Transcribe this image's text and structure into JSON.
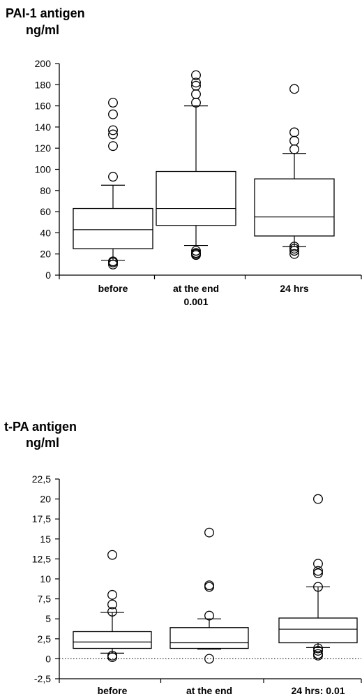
{
  "charts": [
    {
      "title": "PAI-1 antigen",
      "unit": "ng/ml"
    },
    {
      "title": "t-PA antigen",
      "unit": "ng/ml"
    }
  ],
  "chart_data": [
    {
      "type": "box",
      "title": "PAI-1 antigen",
      "ylabel": "ng/ml",
      "ylim": [
        0,
        200
      ],
      "yticks": [
        0,
        20,
        40,
        60,
        80,
        100,
        120,
        140,
        160,
        180,
        200
      ],
      "ytick_labels": [
        "0",
        "20",
        "40",
        "60",
        "80",
        "100",
        "120",
        "140",
        "160",
        "180",
        "200"
      ],
      "categories": [
        "before",
        "at the end",
        "24 hrs"
      ],
      "category_notes": [
        "",
        "0.001",
        ""
      ],
      "grid": false,
      "boxes": [
        {
          "whisker_low": 14,
          "q1": 25,
          "median": 43,
          "q3": 63,
          "whisker_high": 85,
          "outliers": [
            10,
            12,
            13,
            93,
            122,
            133,
            137,
            152,
            163
          ]
        },
        {
          "whisker_low": 28,
          "q1": 47,
          "median": 63,
          "q3": 98,
          "whisker_high": 160,
          "outliers": [
            19,
            20,
            21,
            23,
            163,
            171,
            179,
            182,
            189
          ]
        },
        {
          "whisker_low": 27,
          "q1": 37,
          "median": 55,
          "q3": 91,
          "whisker_high": 115,
          "outliers": [
            20,
            23,
            25,
            27,
            119,
            127,
            135,
            176
          ]
        }
      ]
    },
    {
      "type": "box",
      "title": "t-PA antigen",
      "ylabel": "ng/ml",
      "ylim": [
        -2.5,
        22.5
      ],
      "yticks": [
        -2.5,
        0,
        2.5,
        5,
        7.5,
        10,
        12.5,
        15,
        17.5,
        20,
        22.5
      ],
      "ytick_labels": [
        "-2,5",
        "0",
        "2,5",
        "5",
        "7,5",
        "10",
        "12,5",
        "15",
        "17,5",
        "20",
        "22,5"
      ],
      "categories": [
        "before",
        "at the end",
        "24 hrs: 0.01"
      ],
      "zero_line": "dotted",
      "grid": false,
      "boxes": [
        {
          "whisker_low": 0.7,
          "q1": 1.3,
          "median": 2.1,
          "q3": 3.4,
          "whisker_high": 5.8,
          "outliers": [
            0.2,
            0.4,
            5.9,
            6.8,
            8.0,
            13.0
          ]
        },
        {
          "whisker_low": 1.2,
          "q1": 1.3,
          "median": 2.0,
          "q3": 3.9,
          "whisker_high": 5.0,
          "outliers": [
            0.0,
            5.4,
            9.0,
            9.2,
            15.8
          ]
        },
        {
          "whisker_low": 1.4,
          "q1": 2.0,
          "median": 3.7,
          "q3": 5.1,
          "whisker_high": 9.0,
          "outliers": [
            0.4,
            0.6,
            1.0,
            1.3,
            9.0,
            10.7,
            11.0,
            11.9,
            20.0
          ]
        }
      ]
    }
  ]
}
